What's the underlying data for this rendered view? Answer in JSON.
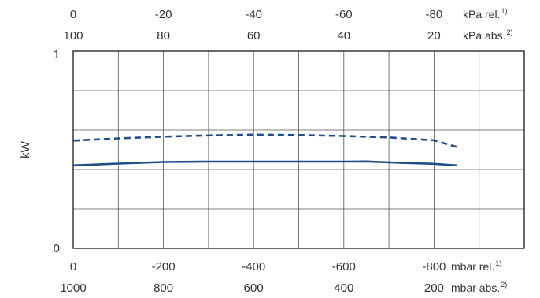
{
  "chart_data": {
    "type": "line",
    "title": "",
    "ylabel": "kW",
    "ylim": [
      0,
      1
    ],
    "yticks": [
      "0",
      "1"
    ],
    "x_axes": {
      "top_rel": {
        "unit": "kPa rel.",
        "unit_sup": "1)",
        "ticks": [
          "0",
          "-20",
          "-40",
          "-60",
          "-80"
        ],
        "values": [
          0,
          -20,
          -40,
          -60,
          -80
        ]
      },
      "top_abs": {
        "unit": "kPa abs.",
        "unit_sup": "2)",
        "ticks": [
          "100",
          "80",
          "60",
          "40",
          "20"
        ],
        "values": [
          100,
          80,
          60,
          40,
          20
        ]
      },
      "bottom_rel": {
        "unit": "mbar rel.",
        "unit_sup": "1)",
        "ticks": [
          "0",
          "-200",
          "-400",
          "-600",
          "-800"
        ],
        "values": [
          0,
          -200,
          -400,
          -600,
          -800
        ]
      },
      "bottom_abs": {
        "unit": "mbar abs.",
        "unit_sup": "2)",
        "ticks": [
          "1000",
          "800",
          "600",
          "400",
          "200"
        ],
        "values": [
          1000,
          800,
          600,
          400,
          200
        ]
      }
    },
    "xlim": [
      0,
      -1000
    ],
    "gridlines_y": [
      0,
      0.2,
      0.4,
      0.6,
      0.8,
      1
    ],
    "gridlines_x": [
      0,
      -100,
      -200,
      -300,
      -400,
      -500,
      -600,
      -700,
      -800,
      -900,
      -1000
    ],
    "grid": true,
    "series": [
      {
        "style": "dashed",
        "color": "#1f4e8c",
        "x": [
          0,
          -100,
          -200,
          -300,
          -400,
          -500,
          -600,
          -700,
          -800,
          -850
        ],
        "y": [
          0.547,
          0.558,
          0.567,
          0.573,
          0.577,
          0.575,
          0.57,
          0.563,
          0.548,
          0.515
        ]
      },
      {
        "style": "solid",
        "color": "#1f4e8c",
        "x": [
          0,
          -100,
          -200,
          -300,
          -400,
          -500,
          -600,
          -650,
          -700,
          -800,
          -850
        ],
        "y": [
          0.421,
          0.43,
          0.438,
          0.44,
          0.44,
          0.44,
          0.44,
          0.441,
          0.436,
          0.429,
          0.421
        ]
      }
    ]
  }
}
